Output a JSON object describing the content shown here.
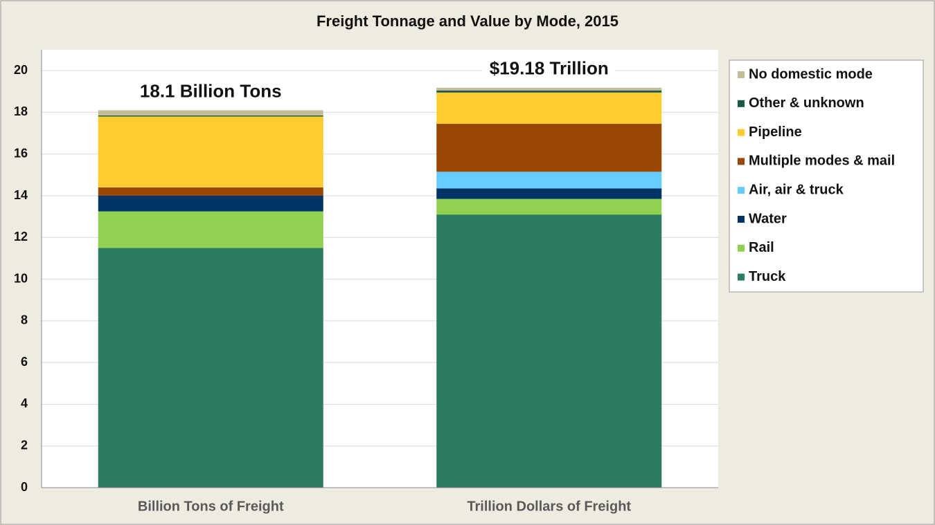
{
  "chart_data": {
    "type": "stacked_bar",
    "title": "Freight Tonnage and Value by Mode, 2015",
    "categories": [
      "Billion Tons of Freight",
      "Trillion Dollars of Freight"
    ],
    "annotations": [
      "18.1 Billion Tons",
      "$19.18 Trillion"
    ],
    "series": [
      {
        "name": "Truck",
        "color": "#2a7d5f",
        "values": [
          11.5,
          13.1
        ]
      },
      {
        "name": "Rail",
        "color": "#92d050",
        "values": [
          1.75,
          0.75
        ]
      },
      {
        "name": "Water",
        "color": "#003366",
        "values": [
          0.75,
          0.5
        ]
      },
      {
        "name": "Air, air & truck",
        "color": "#66ccff",
        "values": [
          0,
          0.8
        ]
      },
      {
        "name": "Multiple modes & mail",
        "color": "#994706",
        "values": [
          0.4,
          2.3
        ]
      },
      {
        "name": "Pipeline",
        "color": "#ffcc2f",
        "values": [
          3.4,
          1.5
        ]
      },
      {
        "name": "Other & unknown",
        "color": "#1a5a40",
        "values": [
          0.05,
          0.1
        ]
      },
      {
        "name": "No domestic mode",
        "color": "#c4bd97",
        "values": [
          0.25,
          0.13
        ]
      }
    ],
    "ylim": [
      0,
      21
    ],
    "yticks": [
      0,
      2,
      4,
      6,
      8,
      10,
      12,
      14,
      16,
      18,
      20
    ],
    "grid": true
  }
}
